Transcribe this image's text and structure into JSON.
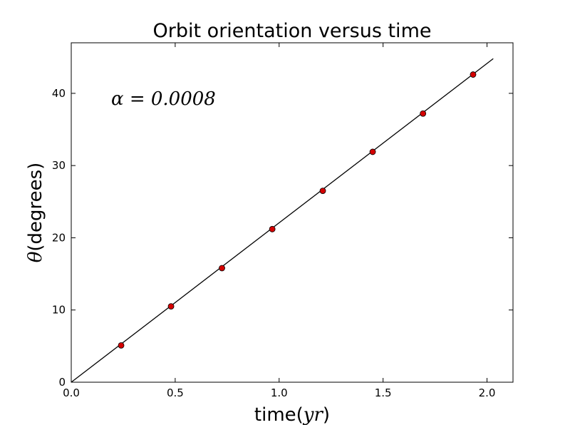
{
  "chart_data": {
    "type": "scatter",
    "title": "Orbit orientation versus time",
    "xlabel_text": "time(",
    "xlabel_math": "yr",
    "xlabel_close": ")",
    "ylabel_math": "θ",
    "ylabel_text": "(degrees)",
    "annotation": "α = 0.0008",
    "xlim": [
      0.0,
      2.125
    ],
    "ylim": [
      0,
      47
    ],
    "xticks": [
      "0.0",
      "0.5",
      "1.0",
      "1.5",
      "2.0"
    ],
    "yticks": [
      "0",
      "10",
      "20",
      "30",
      "40"
    ],
    "grid": false,
    "marker_color": "#d40000",
    "line_color": "#000000",
    "series": [
      {
        "kind": "points",
        "x": [
          0.24,
          0.48,
          0.725,
          0.967,
          1.21,
          1.45,
          1.692,
          1.933
        ],
        "y": [
          5.1,
          10.5,
          15.8,
          21.2,
          26.5,
          31.9,
          37.2,
          42.6
        ]
      },
      {
        "kind": "line",
        "x": [
          0.0,
          2.03
        ],
        "y": [
          0.0,
          44.8
        ]
      }
    ]
  }
}
